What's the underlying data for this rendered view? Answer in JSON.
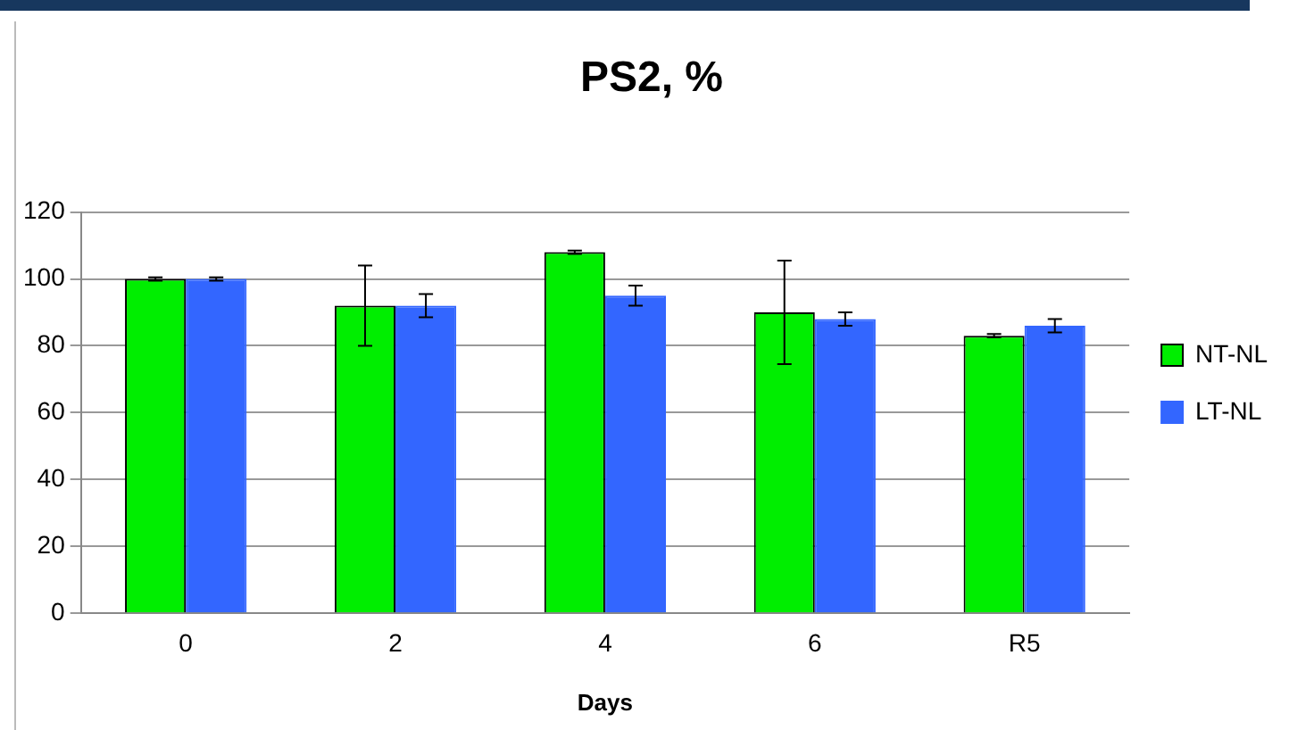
{
  "chart_data": {
    "type": "bar",
    "title": "PS2, %",
    "xlabel": "Days",
    "categories": [
      "0",
      "2",
      "4",
      "6",
      "R5"
    ],
    "series": [
      {
        "name": "NT-NL",
        "color": "#00ee00",
        "values": [
          100,
          92,
          108,
          90,
          83
        ],
        "errors": [
          0.5,
          12,
          0.5,
          15.5,
          0.5
        ]
      },
      {
        "name": "LT-NL",
        "color": "#3366ff",
        "values": [
          100,
          92,
          95,
          88,
          86
        ],
        "errors": [
          0.5,
          3.5,
          3,
          2,
          2
        ]
      }
    ],
    "ylim": [
      0,
      120
    ],
    "yticks": [
      0,
      20,
      40,
      60,
      80,
      100,
      120
    ],
    "grid": "y",
    "legend": "right"
  }
}
